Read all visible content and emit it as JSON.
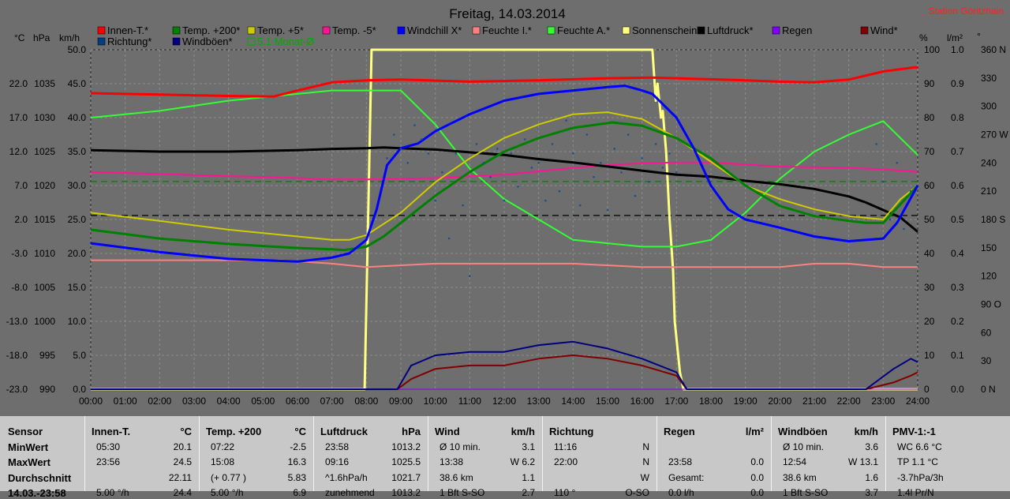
{
  "chart_data": {
    "type": "line",
    "title": "Freitag, 14.03.2014",
    "station": "Station Göritzhain",
    "x_ticks": [
      "00:00",
      "01:00",
      "02:00",
      "03:00",
      "04:00",
      "05:00",
      "06:00",
      "07:00",
      "08:00",
      "09:00",
      "10:00",
      "11:00",
      "12:00",
      "13:00",
      "14:00",
      "15:00",
      "16:00",
      "17:00",
      "18:00",
      "19:00",
      "20:00",
      "21:00",
      "22:00",
      "23:00",
      "24:00"
    ],
    "axes_left": {
      "c": {
        "unit": "°C",
        "ticks": [
          "22.0",
          "17.0",
          "12.0",
          "7.0",
          "2.0",
          "-3.0",
          "-8.0",
          "-13.0",
          "-18.0",
          "-23.0"
        ],
        "range": [
          -23,
          27
        ]
      },
      "hpa": {
        "unit": "hPa",
        "ticks": [
          "1035",
          "1030",
          "1025",
          "1020",
          "1015",
          "1010",
          "1005",
          "1000",
          "995",
          "990"
        ],
        "range": [
          990,
          1040
        ]
      },
      "kmh": {
        "unit": "km/h",
        "ticks": [
          "50.0",
          "45.0",
          "40.0",
          "35.0",
          "30.0",
          "25.0",
          "20.0",
          "15.0",
          "10.0",
          "5.0",
          "0.0"
        ],
        "range": [
          0,
          50
        ]
      }
    },
    "axes_right": {
      "pct": {
        "unit": "%",
        "ticks": [
          "100",
          "90",
          "80",
          "70",
          "60",
          "50",
          "40",
          "30",
          "20",
          "10",
          "0"
        ],
        "range": [
          0,
          100
        ]
      },
      "lm2": {
        "unit": "l/m²",
        "ticks": [
          "1.0",
          "0.9",
          "0.8",
          "0.7",
          "0.6",
          "0.5",
          "0.4",
          "0.3",
          "0.2",
          "0.1",
          "0.0"
        ],
        "range": [
          0,
          1
        ]
      },
      "deg": {
        "unit": "°",
        "ticks": [
          "360 N",
          "330",
          "300",
          "270 W",
          "240",
          "210",
          "180 S",
          "150",
          "120",
          "90 O",
          "60",
          "30",
          "0 N"
        ],
        "range": [
          0,
          360
        ]
      }
    },
    "legend": [
      {
        "label": "Innen-T.*",
        "color": "#ff0000"
      },
      {
        "label": "Temp. +200*",
        "color": "#008000"
      },
      {
        "label": "Temp. +5*",
        "color": "#cccc00"
      },
      {
        "label": "Temp. -5*",
        "color": "#ff1493"
      },
      {
        "label": "Windchill X*",
        "color": "#0000ff"
      },
      {
        "label": "Feuchte I.*",
        "color": "#ff8080"
      },
      {
        "label": "Feuchte A.*",
        "color": "#33ff33"
      },
      {
        "label": "Sonnenschein*",
        "color": "#ffff80"
      },
      {
        "label": "Luftdruck*",
        "color": "#000000"
      },
      {
        "label": "Regen",
        "color": "#8000ff"
      },
      {
        "label": "Wind*",
        "color": "#800000"
      },
      {
        "label": "Richtung*",
        "color": "#004080"
      },
      {
        "label": "Windböen*",
        "color": "#000080"
      },
      {
        "label": "5.1 Monat-Ø",
        "color": "#00aa00"
      }
    ],
    "series": [
      {
        "name": "Innen-T.*",
        "color": "#ff0000",
        "width": 3,
        "axis": "c",
        "x": [
          0,
          2,
          4,
          5.3,
          6,
          7,
          8,
          9,
          11,
          13,
          15,
          16.3,
          17,
          19,
          20,
          21,
          22,
          23,
          23.9,
          24
        ],
        "y": [
          20.6,
          20.4,
          20.2,
          20.1,
          21,
          22.2,
          22.5,
          22.6,
          22.3,
          22.5,
          22.8,
          22.9,
          22.8,
          22.5,
          22.3,
          22.2,
          22.6,
          23.8,
          24.4,
          24.4
        ]
      },
      {
        "name": "Temp. +200*",
        "color": "#008000",
        "width": 3,
        "axis": "c",
        "x": [
          0,
          2,
          4,
          6,
          7,
          7.37,
          8,
          8.5,
          9,
          10,
          11,
          12,
          13,
          14,
          15,
          15.13,
          16,
          17,
          18,
          19,
          20,
          21,
          22,
          22.5,
          23,
          24
        ],
        "y": [
          0.5,
          -0.8,
          -1.6,
          -2.2,
          -2.4,
          -2.5,
          -2.0,
          -0.5,
          1.5,
          5.5,
          9.0,
          12.0,
          14.0,
          15.5,
          16.2,
          16.3,
          15.8,
          14.0,
          11.0,
          7.0,
          4.0,
          2.5,
          1.8,
          1.5,
          1.5,
          7.0
        ]
      },
      {
        "name": "Temp. +5*",
        "color": "#cccc00",
        "width": 2,
        "axis": "c",
        "x": [
          0,
          2,
          4,
          6,
          7,
          7.5,
          8,
          9,
          10,
          11,
          12,
          13,
          14,
          15,
          16,
          17,
          18,
          19,
          20,
          21,
          22,
          23,
          23.5,
          24
        ],
        "y": [
          3.0,
          1.8,
          0.5,
          -0.5,
          -1.0,
          -1.0,
          -0.3,
          3.0,
          7.5,
          11.0,
          14.0,
          16.0,
          17.5,
          17.8,
          16.8,
          14.0,
          10.5,
          7.0,
          5.0,
          3.5,
          2.5,
          2.0,
          5.0,
          7.0
        ]
      },
      {
        "name": "Temp. -5*",
        "color": "#ff1493",
        "width": 2,
        "axis": "c",
        "x": [
          0,
          2,
          4,
          6,
          7,
          8,
          10,
          12,
          14,
          15,
          16,
          17,
          18,
          19,
          20,
          21,
          22,
          23,
          24
        ],
        "y": [
          9.0,
          8.7,
          8.4,
          8.1,
          7.9,
          7.9,
          8.1,
          8.6,
          9.6,
          10.0,
          10.3,
          10.4,
          10.4,
          10.1,
          9.8,
          9.7,
          9.6,
          9.4,
          9.0
        ]
      },
      {
        "name": "Windchill X*",
        "color": "#0000ff",
        "width": 3,
        "axis": "c",
        "x": [
          0,
          2,
          4,
          6,
          7,
          7.5,
          8,
          8.3,
          8.6,
          9,
          9.5,
          10,
          11,
          12,
          13,
          14,
          15,
          15.5,
          16,
          16.3,
          17,
          17.5,
          18,
          18.5,
          19,
          20,
          21,
          22,
          23,
          23.4,
          24
        ],
        "y": [
          -1.5,
          -2.8,
          -3.8,
          -4.2,
          -3.6,
          -3.0,
          -1.0,
          3.5,
          10.0,
          12.5,
          13.2,
          15.0,
          17.5,
          19.5,
          20.5,
          21.0,
          21.5,
          21.7,
          21.0,
          20.5,
          17.0,
          12.5,
          7.0,
          3.5,
          2.0,
          0.8,
          -0.5,
          -1.2,
          -0.8,
          1.5,
          7.0
        ]
      },
      {
        "name": "Feuchte I.*",
        "color": "#ff8080",
        "width": 2,
        "axis": "pct",
        "x": [
          0,
          4,
          5.5,
          7,
          8,
          10,
          12,
          14,
          16,
          18,
          19,
          20,
          21,
          22,
          23,
          24
        ],
        "y": [
          38,
          38,
          38,
          37,
          36,
          37,
          37,
          37,
          36,
          36,
          36,
          36,
          37,
          37,
          36,
          36
        ]
      },
      {
        "name": "Feuchte A.*",
        "color": "#33ff33",
        "width": 2,
        "axis": "pct",
        "x": [
          0,
          2,
          4,
          5,
          6,
          7,
          8,
          9,
          10,
          11,
          12,
          13,
          14,
          15,
          16,
          17,
          18,
          19,
          20,
          21,
          22,
          23,
          24
        ],
        "y": [
          80,
          82,
          85,
          86,
          87,
          88,
          88,
          88,
          78,
          65,
          56,
          50,
          44,
          43,
          42,
          42,
          44,
          52,
          62,
          70,
          75,
          79,
          69
        ]
      },
      {
        "name": "Luftdruck*",
        "color": "#000000",
        "width": 3,
        "axis": "hpa",
        "x": [
          0,
          2,
          4,
          6,
          7,
          8,
          8.5,
          9,
          10,
          11,
          12,
          13,
          14,
          15,
          16,
          17,
          18,
          19,
          20,
          21,
          22,
          22.5,
          23,
          23.5,
          24
        ],
        "y": [
          1025.2,
          1025.0,
          1025.0,
          1025.2,
          1025.4,
          1025.5,
          1025.6,
          1025.5,
          1025.3,
          1024.9,
          1024.5,
          1023.9,
          1023.4,
          1022.8,
          1022.2,
          1021.6,
          1021.3,
          1020.7,
          1020.2,
          1019.5,
          1018.4,
          1017.5,
          1016.4,
          1015.3,
          1013.2
        ]
      },
      {
        "name": "Sonnenschein*",
        "color": "#ffff80",
        "width": 3,
        "axis": "pct",
        "x": [
          0,
          7.95,
          8.05,
          8.15,
          16.3,
          16.4,
          16.45,
          16.55,
          16.6,
          16.7,
          16.8,
          16.9,
          16.95,
          17.05,
          17.1,
          17.2,
          24
        ],
        "y": [
          0,
          0,
          50,
          100,
          100,
          85,
          90,
          80,
          82,
          70,
          50,
          35,
          20,
          10,
          5,
          0,
          0
        ]
      },
      {
        "name": "Regen",
        "color": "#8000ff",
        "width": 1,
        "axis": "lm2",
        "x": [
          0,
          24
        ],
        "y": [
          0,
          0
        ]
      },
      {
        "name": "Wind*",
        "color": "#800000",
        "width": 2,
        "axis": "kmh",
        "x": [
          0,
          8.9,
          9.3,
          10,
          11,
          12,
          13,
          14,
          15,
          16,
          17,
          17.3,
          17.4,
          22.5,
          23.3,
          23.8,
          24
        ],
        "y": [
          0,
          0,
          1.5,
          3.0,
          3.5,
          3.5,
          4.5,
          5.0,
          4.5,
          3.5,
          2.0,
          0,
          0,
          0,
          1.0,
          2.0,
          2.5
        ]
      },
      {
        "name": "Windböen*",
        "color": "#000080",
        "width": 2,
        "axis": "kmh",
        "x": [
          0,
          8.9,
          9.3,
          10,
          11,
          12,
          13,
          14,
          15,
          16,
          17,
          17.3,
          17.4,
          22.5,
          23.3,
          23.8,
          24
        ],
        "y": [
          0,
          0,
          3.5,
          5.0,
          5.5,
          5.5,
          6.5,
          7.0,
          6.0,
          4.5,
          2.5,
          0,
          0,
          0,
          3.0,
          4.5,
          4.0
        ]
      }
    ],
    "richtung_points_note": "Richtung* scatter (deg) 08:30-23:50",
    "richtung": {
      "x": [
        8.6,
        8.8,
        9.0,
        9.2,
        9.4,
        9.6,
        9.8,
        10.0,
        10.2,
        10.4,
        10.6,
        10.8,
        11.0,
        11.2,
        11.4,
        11.6,
        11.8,
        12.0,
        12.2,
        12.4,
        12.6,
        12.8,
        13.0,
        13.2,
        13.4,
        13.6,
        13.8,
        14.0,
        14.2,
        14.4,
        14.6,
        14.8,
        15.0,
        15.2,
        15.4,
        15.6,
        15.8,
        16.0,
        16.2,
        16.4,
        16.6,
        16.8,
        17.0,
        22.8,
        23.0,
        23.2,
        23.4,
        23.6,
        23.8
      ],
      "y": [
        245,
        270,
        255,
        240,
        280,
        265,
        250,
        200,
        230,
        160,
        250,
        195,
        120,
        260,
        240,
        225,
        255,
        200,
        250,
        215,
        265,
        235,
        240,
        200,
        260,
        210,
        285,
        250,
        195,
        270,
        225,
        240,
        190,
        255,
        230,
        270,
        205,
        245,
        220,
        260,
        235,
        250,
        230,
        260,
        220,
        180,
        240,
        170,
        210
      ]
    },
    "ref_lines": [
      {
        "value": 25.6,
        "axis": "kmh",
        "color": "#000000",
        "dash": "8,5"
      },
      {
        "value": 7.6,
        "axis": "c",
        "color": "#008000",
        "dash": "8,5"
      }
    ]
  },
  "table": {
    "rows": [
      "Sensor",
      "MinWert",
      "MaxWert",
      "Durchschnitt",
      "14.03.-23:58"
    ],
    "cols": [
      {
        "hd1": "Innen-T.",
        "hd2": "°C",
        "r1a": "05:30",
        "r1b": "20.1",
        "r2a": "23:56",
        "r2b": "24.5",
        "r3a": "",
        "r3b": "22.11",
        "r4a": "5.00 °/h",
        "r4b": "24.4"
      },
      {
        "hd1": "Temp. +200",
        "hd2": "°C",
        "r1a": "07:22",
        "r1b": "-2.5",
        "r2a": "15:08",
        "r2b": "16.3",
        "r3a": "(+ 0.77 )",
        "r3b": "5.83",
        "r4a": "5.00 °/h",
        "r4b": "6.9"
      },
      {
        "hd1": "Luftdruck",
        "hd2": "hPa",
        "r1a": "23:58",
        "r1b": "1013.2",
        "r2a": "09:16",
        "r2b": "1025.5",
        "r3a": "^1.6hPa/h",
        "r3b": "1021.7",
        "r4a": "zunehmend",
        "r4b": "1013.2"
      },
      {
        "hd1": "Wind",
        "hd2": "km/h",
        "r1a": "Ø 10 min.",
        "r1b": "3.1",
        "r2a": "13:38",
        "r2b": "W 6.2",
        "r3a": "38.6 km",
        "r3b": "1.1",
        "r4a": "1 Bft S-SO",
        "r4b": "2.7"
      },
      {
        "hd1": "Richtung",
        "hd2": "",
        "r1a": "11:16",
        "r1b": "N",
        "r2a": "22:00",
        "r2b": "N",
        "r3a": "",
        "r3b": "W",
        "r4a": "110 °",
        "r4b": "O-SO"
      },
      {
        "hd1": "Regen",
        "hd2": "l/m²",
        "r1a": "",
        "r1b": "",
        "r2a": "23:58",
        "r2b": "0.0",
        "r3a": "Gesamt:",
        "r3b": "0.0",
        "r4a": "0.0 l/h",
        "r4b": "0.0"
      },
      {
        "hd1": "Windböen",
        "hd2": "km/h",
        "r1a": "Ø 10 min.",
        "r1b": "3.6",
        "r2a": "12:54",
        "r2b": "W 13.1",
        "r3a": "38.6 km",
        "r3b": "1.6",
        "r4a": "1 Bft S-SO",
        "r4b": "3.7"
      },
      {
        "hd1": "PMV-1:-1",
        "hd2": "",
        "r1a": "WC 6.6 °C",
        "r1b": "",
        "r2a": "TP 1.1 °C",
        "r2b": "",
        "r3a": "-3.7hPa/3h",
        "r3b": "",
        "r4a": "1.4l Pr/N",
        "r4b": ""
      }
    ]
  }
}
